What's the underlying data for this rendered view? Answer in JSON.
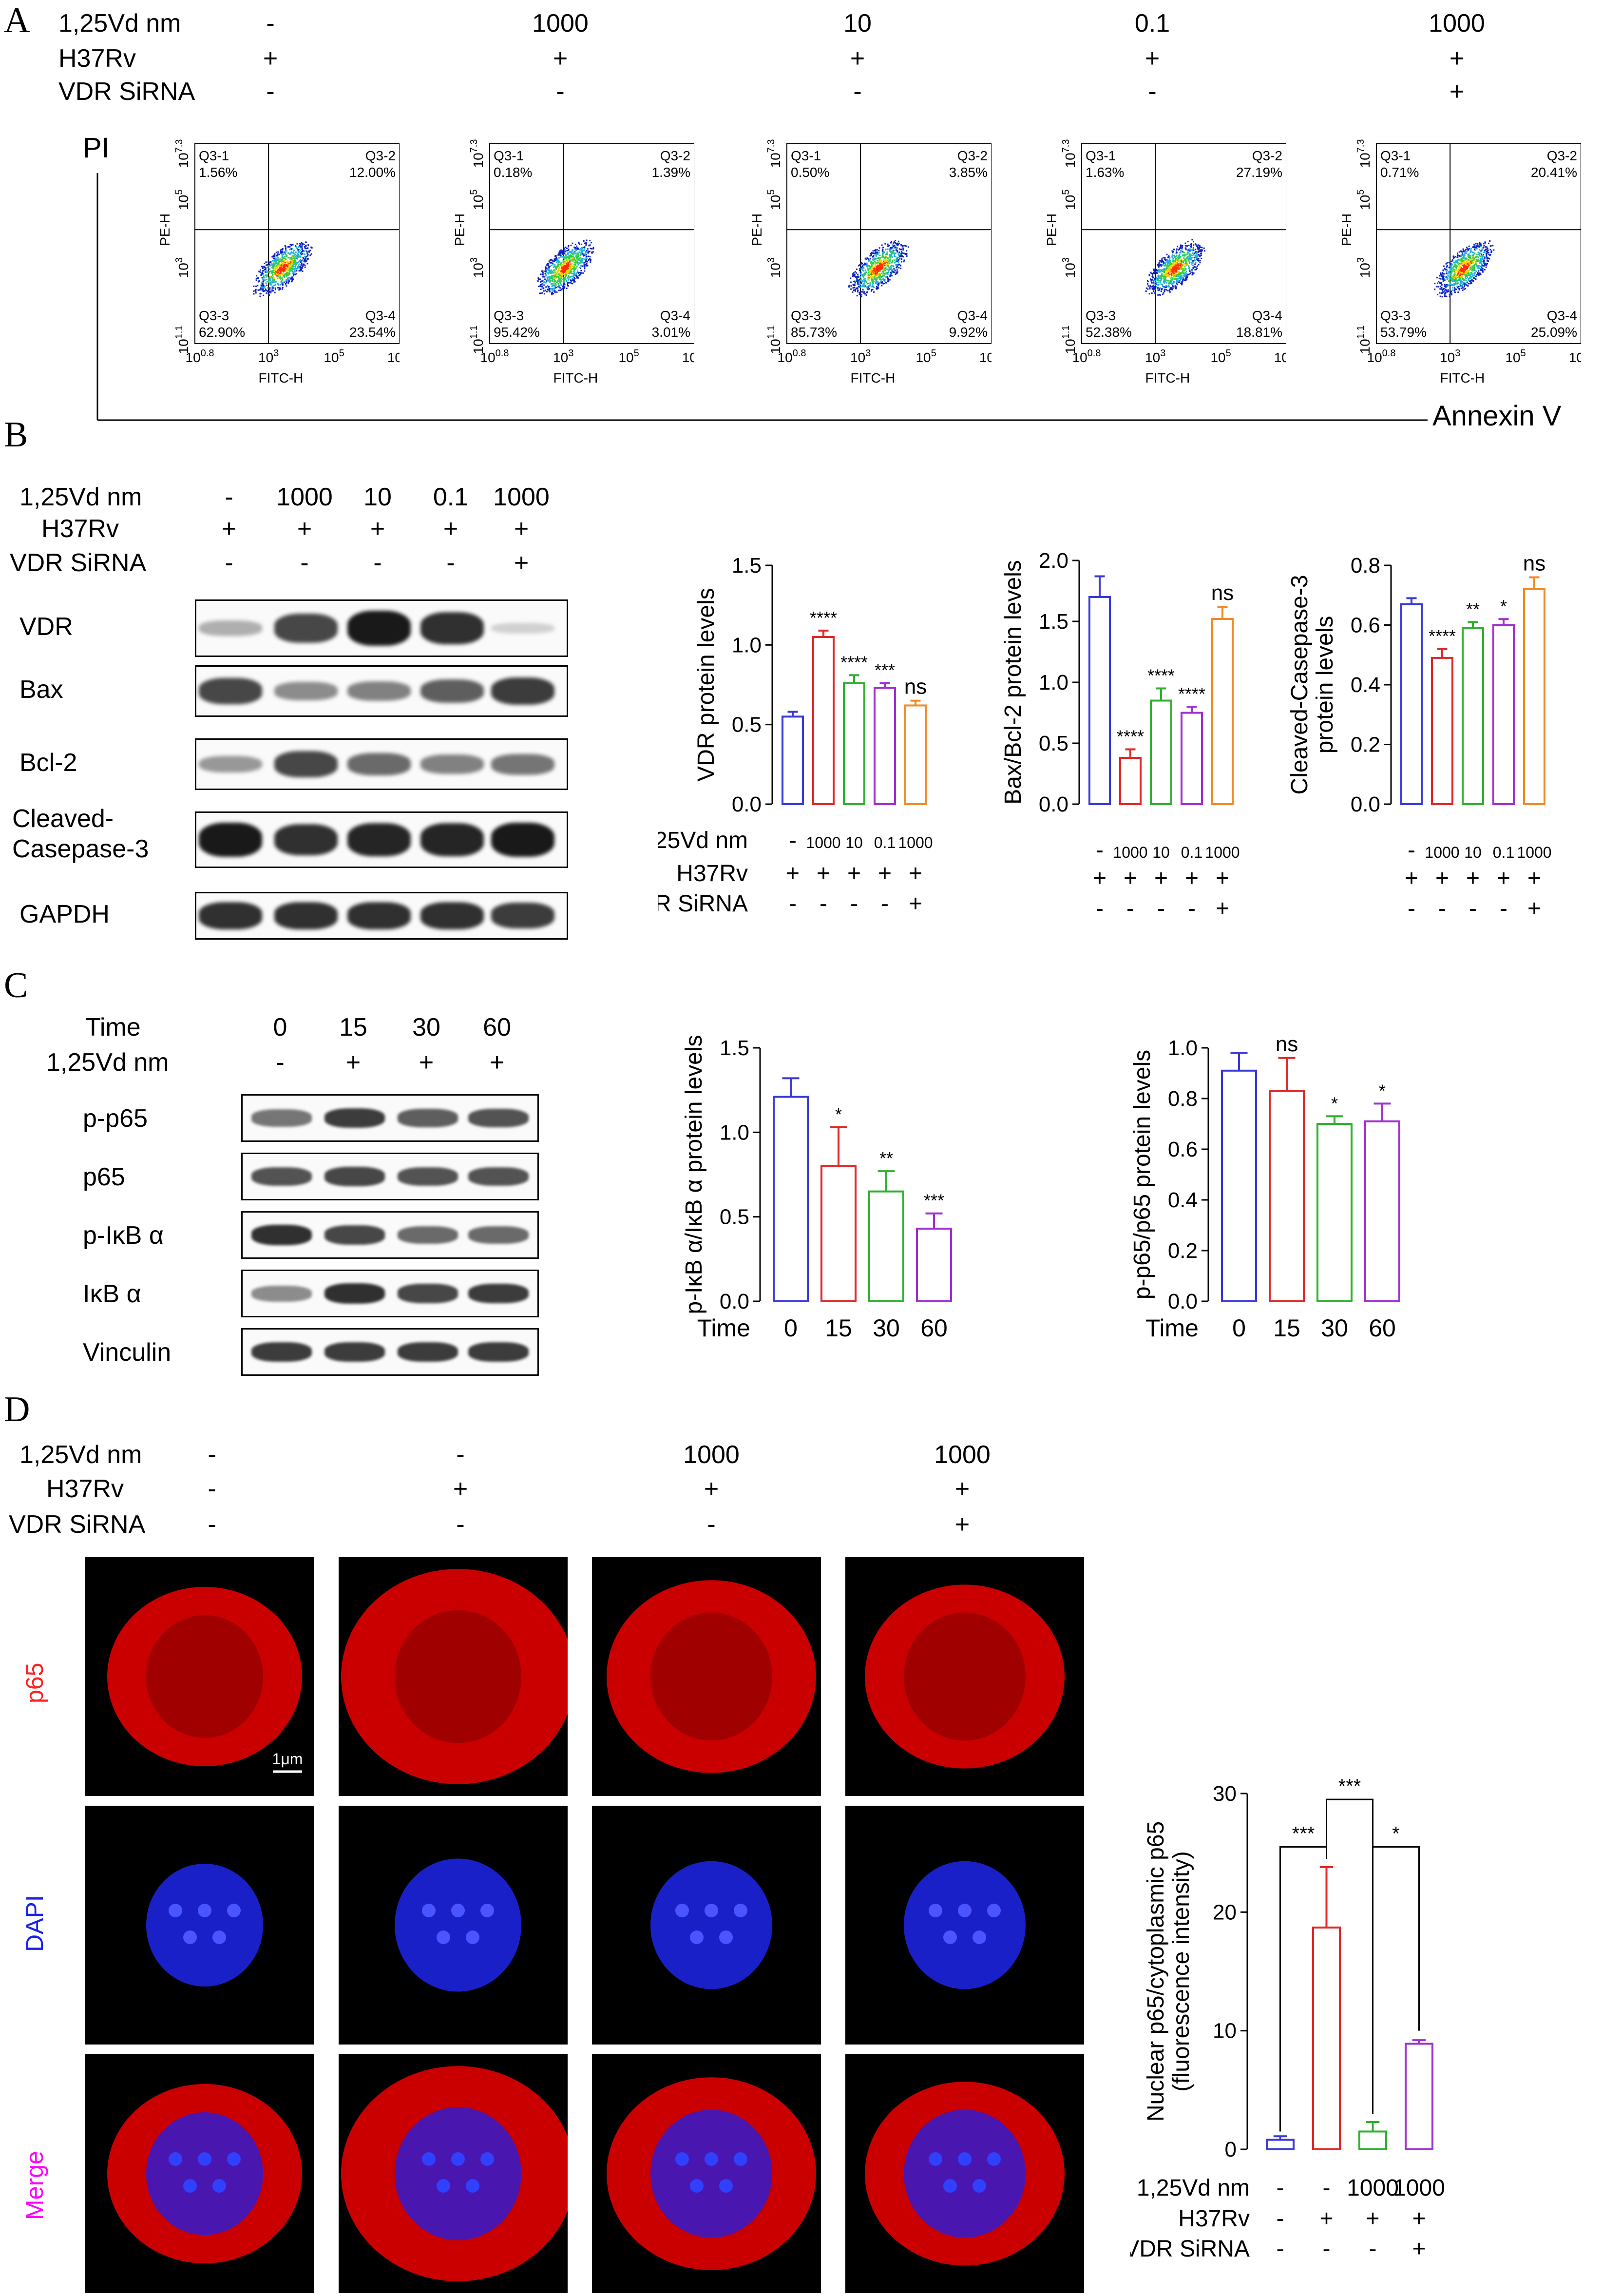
{
  "panel_letters": {
    "a": "A",
    "b": "B",
    "c": "C",
    "d": "D"
  },
  "row_labels": {
    "vd": "1,25Vd nm",
    "h37rv": "H37Rv",
    "sirna": "VDR SiRNA",
    "time": "Time"
  },
  "panelA": {
    "vd": [
      "-",
      "1000",
      "10",
      "0.1",
      "1000"
    ],
    "h37rv": [
      "+",
      "+",
      "+",
      "+",
      "+"
    ],
    "sirna": [
      "-",
      "-",
      "-",
      "-",
      "+"
    ],
    "y_axis_label": "PI",
    "x_axis_label": "Annexin V",
    "plot_ylabel": "PE-H",
    "plot_xlabel": "FITC-H",
    "quadrant_names": [
      "Q3-1",
      "Q3-2",
      "Q3-3",
      "Q3-4"
    ],
    "plots": [
      {
        "q1": "1.56%",
        "q2": "12.00%",
        "q3": "62.90%",
        "q4": "23.54%"
      },
      {
        "q1": "0.18%",
        "q2": "1.39%",
        "q3": "95.42%",
        "q4": "3.01%"
      },
      {
        "q1": "0.50%",
        "q2": "3.85%",
        "q3": "85.73%",
        "q4": "9.92%"
      },
      {
        "q1": "1.63%",
        "q2": "27.19%",
        "q3": "52.38%",
        "q4": "18.81%"
      },
      {
        "q1": "0.71%",
        "q2": "20.41%",
        "q3": "53.79%",
        "q4": "25.09%"
      }
    ]
  },
  "panelB": {
    "vd": [
      "-",
      "1000",
      "10",
      "0.1",
      "1000"
    ],
    "h37rv": [
      "+",
      "+",
      "+",
      "+",
      "+"
    ],
    "sirna": [
      "-",
      "-",
      "-",
      "-",
      "+"
    ],
    "blot_rows": [
      "VDR",
      "Bax",
      "Bcl-2",
      "Cleaved-\nCasepase-3",
      "GAPDH"
    ]
  },
  "panelC": {
    "time": [
      "0",
      "15",
      "30",
      "60"
    ],
    "vd": [
      "-",
      "+",
      "+",
      "+"
    ],
    "blot_rows": [
      "p-p65",
      "p65",
      "p-IκB α",
      "IκB α",
      "Vinculin"
    ]
  },
  "panelD": {
    "vd": [
      "-",
      "-",
      "1000",
      "1000"
    ],
    "h37rv": [
      "-",
      "+",
      "+",
      "+"
    ],
    "sirna": [
      "-",
      "-",
      "-",
      "+"
    ],
    "channels": [
      "p65",
      "DAPI",
      "Merge"
    ],
    "scale_bar": "1μm"
  },
  "colors": {
    "blue": "#3a3ad8",
    "red": "#e02828",
    "green": "#2fb02f",
    "purple": "#a030d0",
    "orange": "#f08a24",
    "fc_red": "#ff2020",
    "dapi": "#1c22e8"
  },
  "chart_data": [
    {
      "id": "B1",
      "type": "bar",
      "ylabel": "VDR protein levels",
      "ylim": [
        0,
        1.5
      ],
      "yticks": [
        "0.0",
        "0.5",
        "1.0",
        "1.5"
      ],
      "values": [
        0.55,
        1.05,
        0.76,
        0.73,
        0.62
      ],
      "errors": [
        0.03,
        0.04,
        0.05,
        0.03,
        0.03
      ],
      "sig": [
        "",
        "****",
        "****",
        "***",
        "ns"
      ],
      "cond_vd": [
        "-",
        "1000",
        "10",
        "0.1",
        "1000"
      ],
      "cond_h37rv": [
        "+",
        "+",
        "+",
        "+",
        "+"
      ],
      "cond_sirna": [
        "-",
        "-",
        "-",
        "-",
        "+"
      ]
    },
    {
      "id": "B2",
      "type": "bar",
      "ylabel": "Bax/Bcl-2 protein levels",
      "ylim": [
        0,
        2.0
      ],
      "yticks": [
        "0.0",
        "0.5",
        "1.0",
        "1.5",
        "2.0"
      ],
      "values": [
        1.7,
        0.38,
        0.85,
        0.75,
        1.52
      ],
      "errors": [
        0.17,
        0.07,
        0.1,
        0.05,
        0.1
      ],
      "sig": [
        "",
        "****",
        "****",
        "****",
        "ns"
      ],
      "cond_vd": [
        "-",
        "1000",
        "10",
        "0.1",
        "1000"
      ],
      "cond_h37rv": [
        "+",
        "+",
        "+",
        "+",
        "+"
      ],
      "cond_sirna": [
        "-",
        "-",
        "-",
        "-",
        "+"
      ]
    },
    {
      "id": "B3",
      "type": "bar",
      "ylabel": "Cleaved-Casepase-3\nprotein levels",
      "ylim": [
        0,
        0.8
      ],
      "yticks": [
        "0.0",
        "0.2",
        "0.4",
        "0.6",
        "0.8"
      ],
      "values": [
        0.67,
        0.49,
        0.59,
        0.6,
        0.72
      ],
      "errors": [
        0.02,
        0.03,
        0.02,
        0.02,
        0.04
      ],
      "sig": [
        "",
        "****",
        "**",
        "*",
        "ns"
      ],
      "cond_vd": [
        "-",
        "1000",
        "10",
        "0.1",
        "1000"
      ],
      "cond_h37rv": [
        "+",
        "+",
        "+",
        "+",
        "+"
      ],
      "cond_sirna": [
        "-",
        "-",
        "-",
        "-",
        "+"
      ]
    },
    {
      "id": "C1",
      "type": "bar",
      "ylabel": "p-IκB α/IκB α protein levels",
      "xlabel": "Time",
      "ylim": [
        0,
        1.5
      ],
      "yticks": [
        "0.0",
        "0.5",
        "1.0",
        "1.5"
      ],
      "categories": [
        "0",
        "15",
        "30",
        "60"
      ],
      "values": [
        1.21,
        0.8,
        0.65,
        0.43
      ],
      "errors": [
        0.11,
        0.23,
        0.12,
        0.09
      ],
      "sig": [
        "",
        "*",
        "**",
        "***"
      ]
    },
    {
      "id": "C2",
      "type": "bar",
      "ylabel": "p-p65/p65 protein levels",
      "xlabel": "Time",
      "ylim": [
        0,
        1.0
      ],
      "yticks": [
        "0.0",
        "0.2",
        "0.4",
        "0.6",
        "0.8",
        "1.0"
      ],
      "categories": [
        "0",
        "15",
        "30",
        "60"
      ],
      "values": [
        0.91,
        0.83,
        0.7,
        0.71
      ],
      "errors": [
        0.07,
        0.13,
        0.03,
        0.07
      ],
      "sig": [
        "",
        "ns",
        "*",
        "*"
      ]
    },
    {
      "id": "D1",
      "type": "bar",
      "ylabel": "Nuclear p65/cytoplasmic p65\n(fluorescence intensity)",
      "ylim": [
        0,
        30
      ],
      "yticks": [
        "0",
        "10",
        "20",
        "30"
      ],
      "values": [
        0.8,
        18.7,
        1.5,
        8.9
      ],
      "errors": [
        0.3,
        5.1,
        0.8,
        0.3
      ],
      "brackets": [
        {
          "from": 0,
          "to": 1,
          "label": "***"
        },
        {
          "from": 1,
          "to": 2,
          "label": "***"
        },
        {
          "from": 2,
          "to": 3,
          "label": "*"
        }
      ],
      "cond_vd": [
        "-",
        "-",
        "1000",
        "1000"
      ],
      "cond_h37rv": [
        "-",
        "+",
        "+",
        "+"
      ],
      "cond_sirna": [
        "-",
        "-",
        "-",
        "+"
      ]
    }
  ]
}
